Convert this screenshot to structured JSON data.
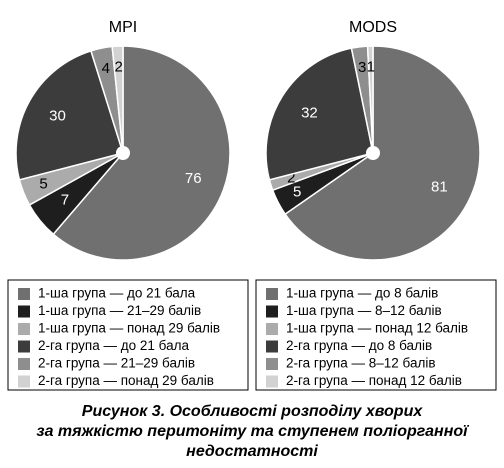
{
  "chart_data": [
    {
      "type": "pie",
      "title": "MPI",
      "categories": [
        "1-ша група — до 21 бала",
        "1-ша група — 21–29 балів",
        "1-ша група — понад 29 балів",
        "2-га група — до 21 бала",
        "2-га група — 21–29 балів",
        "2-га група — понад 29 балів"
      ],
      "values": [
        76,
        7,
        5,
        30,
        4,
        2
      ],
      "colors": [
        "#707070",
        "#1e1e1e",
        "#ababab",
        "#3c3c3c",
        "#8e8e8e",
        "#d2d2d2"
      ]
    },
    {
      "type": "pie",
      "title": "MODS",
      "categories": [
        "1-ша група — до 8 балів",
        "1-ша група — 8–12 балів",
        "1-ша група — понад 12 балів",
        "2-га група — до 8 балів",
        "2-га група — 8–12 балів",
        "2-га група — понад 12 балів"
      ],
      "values": [
        81,
        5,
        2,
        32,
        3,
        1
      ],
      "colors": [
        "#707070",
        "#1e1e1e",
        "#ababab",
        "#3c3c3c",
        "#8e8e8e",
        "#d2d2d2"
      ]
    }
  ],
  "caption": [
    "Рисунок 3. Особливості розподілу хворих",
    "за тяжкістю перитоніту та ступенем поліорганної",
    "недостатності"
  ]
}
